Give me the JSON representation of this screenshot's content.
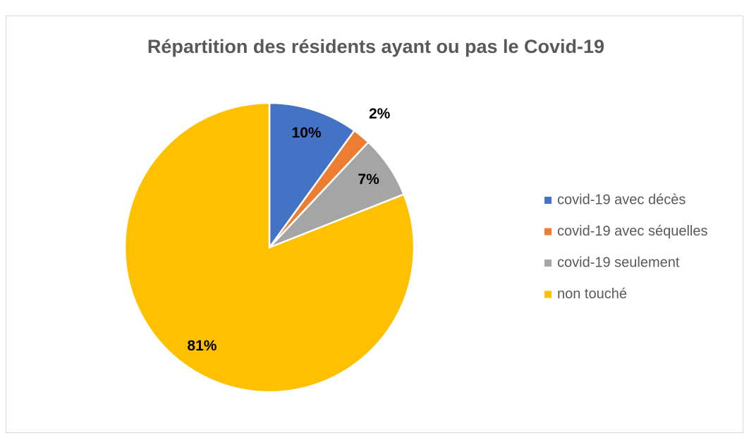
{
  "chart_data": {
    "type": "pie",
    "title": "Répartition des résidents ayant ou pas le Covid-19",
    "categories": [
      "covid-19 avec décès",
      "covid-19 avec séquelles",
      "covid-19 seulement",
      "non touché"
    ],
    "values": [
      10,
      2,
      7,
      81
    ],
    "value_labels": [
      "10%",
      "2%",
      "7%",
      "81%"
    ],
    "colors": [
      "#4472c4",
      "#ed7d31",
      "#a5a5a5",
      "#ffc000"
    ],
    "legend": "right"
  }
}
